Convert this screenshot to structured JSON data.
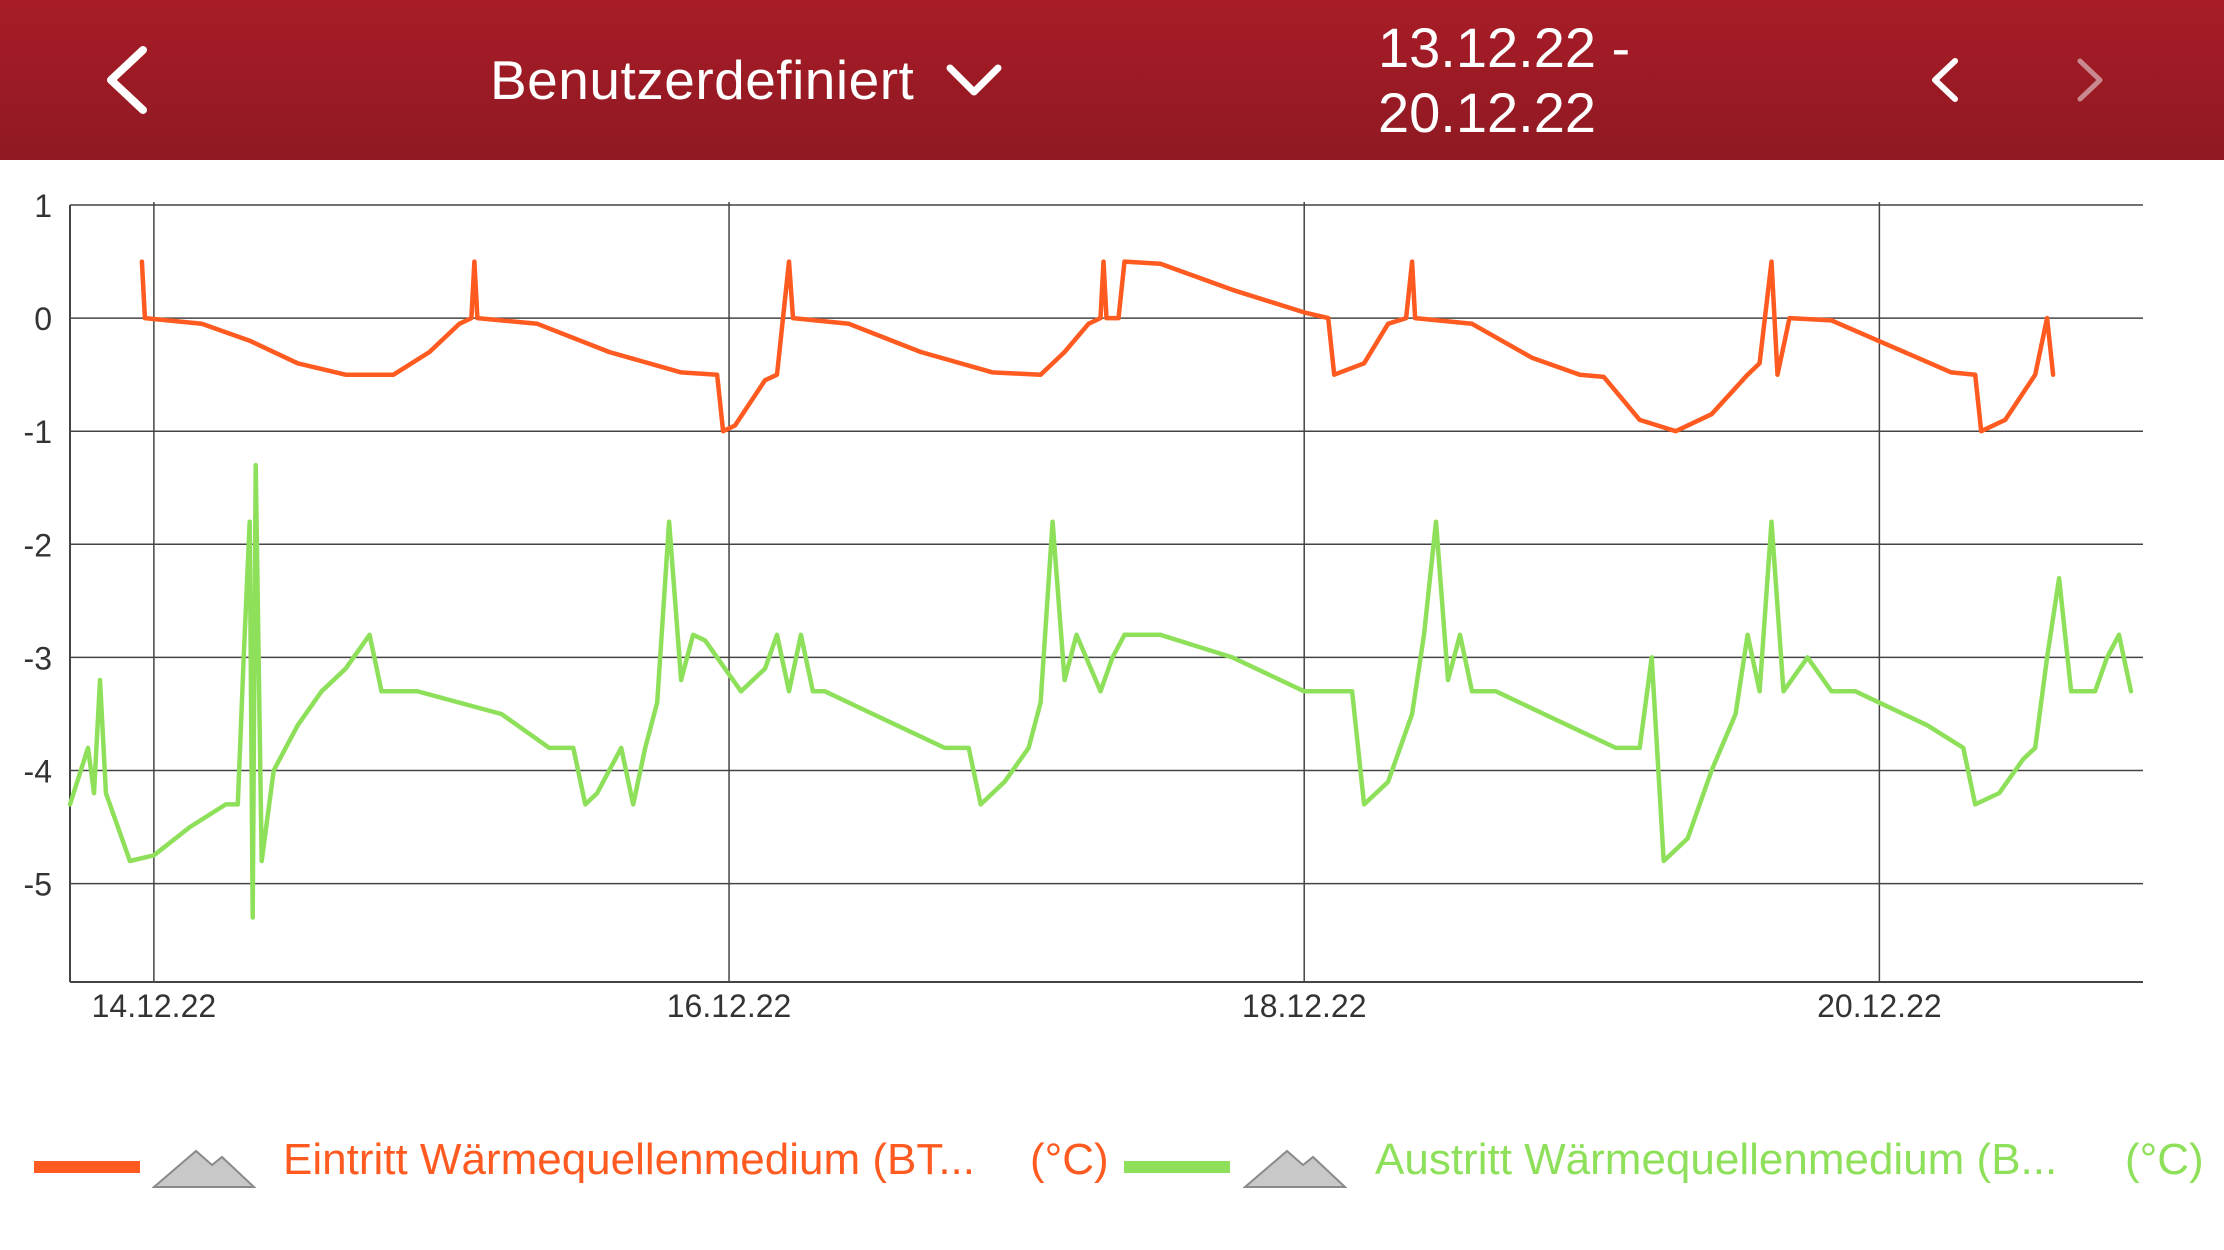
{
  "header": {
    "period_label": "Benutzerdefiniert",
    "date_range": "13.12.22 - 20.12.22"
  },
  "colors": {
    "header_bg": "#a01b25",
    "series_inlet": "#ff5a1f",
    "series_outlet": "#8ee05a",
    "grid": "#444444",
    "toggle_icon": "#c8c8c8"
  },
  "icons": {
    "back": "chevron-left-icon",
    "dropdown": "chevron-down-icon",
    "prev": "chevron-left-icon",
    "next": "chevron-right-icon",
    "toggle": "mountain-icon"
  },
  "legend": [
    {
      "label": "Eintritt Wärmequellenmedium (BT...",
      "unit": "(°C)"
    },
    {
      "label": "Austritt Wärmequellenmedium (B...",
      "unit": "(°C)"
    }
  ],
  "chart_data": {
    "type": "line",
    "x_type": "date",
    "xlim": [
      "13.12.22 17:00",
      "20.12.22 22:00"
    ],
    "ylim": [
      -5.87,
      1
    ],
    "y_ticks": [
      "1",
      "0",
      "-1",
      "-2",
      "-3",
      "-4",
      "-5"
    ],
    "x_ticks": [
      "14.12.22",
      "16.12.22",
      "18.12.22",
      "20.12.22"
    ],
    "grid": true,
    "legend_position": "bottom",
    "series": [
      {
        "name": "Eintritt Wärmequellenmedium (BT...",
        "color": "#ff5a1f",
        "points": [
          [
            "13.12.22 23:00",
            0.5
          ],
          [
            "13.12.22 23:15",
            0.0
          ],
          [
            "14.12.22 04:00",
            -0.05
          ],
          [
            "14.12.22 08:00",
            -0.2
          ],
          [
            "14.12.22 12:00",
            -0.4
          ],
          [
            "14.12.22 16:00",
            -0.5
          ],
          [
            "14.12.22 20:00",
            -0.5
          ],
          [
            "14.12.22 23:00",
            -0.3
          ],
          [
            "15.12.22 01:30",
            -0.05
          ],
          [
            "15.12.22 02:30",
            0.0
          ],
          [
            "15.12.22 02:45",
            0.5
          ],
          [
            "15.12.22 03:00",
            0.0
          ],
          [
            "15.12.22 08:00",
            -0.05
          ],
          [
            "15.12.22 14:00",
            -0.3
          ],
          [
            "15.12.22 20:00",
            -0.48
          ],
          [
            "15.12.22 23:00",
            -0.5
          ],
          [
            "15.12.22 23:30",
            -1.0
          ],
          [
            "16.12.22 00:30",
            -0.95
          ],
          [
            "16.12.22 03:00",
            -0.55
          ],
          [
            "16.12.22 04:00",
            -0.5
          ],
          [
            "16.12.22 04:30",
            0.0
          ],
          [
            "16.12.22 05:00",
            0.5
          ],
          [
            "16.12.22 05:20",
            0.0
          ],
          [
            "16.12.22 10:00",
            -0.05
          ],
          [
            "16.12.22 16:00",
            -0.3
          ],
          [
            "16.12.22 22:00",
            -0.48
          ],
          [
            "17.12.22 02:00",
            -0.5
          ],
          [
            "17.12.22 04:00",
            -0.3
          ],
          [
            "17.12.22 06:00",
            -0.05
          ],
          [
            "17.12.22 07:00",
            0.0
          ],
          [
            "17.12.22 07:15",
            0.5
          ],
          [
            "17.12.22 07:30",
            0.0
          ],
          [
            "17.12.22 08:30",
            0.0
          ],
          [
            "17.12.22 09:00",
            0.5
          ],
          [
            "17.12.22 12:00",
            0.48
          ],
          [
            "17.12.22 18:00",
            0.25
          ],
          [
            "18.12.22 00:00",
            0.05
          ],
          [
            "18.12.22 02:00",
            0.0
          ],
          [
            "18.12.22 02:30",
            -0.5
          ],
          [
            "18.12.22 05:00",
            -0.4
          ],
          [
            "18.12.22 07:00",
            -0.05
          ],
          [
            "18.12.22 08:30",
            0.0
          ],
          [
            "18.12.22 09:00",
            0.5
          ],
          [
            "18.12.22 09:15",
            0.0
          ],
          [
            "18.12.22 14:00",
            -0.05
          ],
          [
            "18.12.22 19:00",
            -0.35
          ],
          [
            "18.12.22 23:00",
            -0.5
          ],
          [
            "19.12.22 01:00",
            -0.52
          ],
          [
            "19.12.22 04:00",
            -0.9
          ],
          [
            "19.12.22 07:00",
            -1.0
          ],
          [
            "19.12.22 10:00",
            -0.85
          ],
          [
            "19.12.22 13:00",
            -0.5
          ],
          [
            "19.12.22 14:00",
            -0.4
          ],
          [
            "19.12.22 15:00",
            0.5
          ],
          [
            "19.12.22 15:30",
            -0.5
          ],
          [
            "19.12.22 16:30",
            0.0
          ],
          [
            "19.12.22 20:00",
            -0.02
          ],
          [
            "20.12.22 01:00",
            -0.25
          ],
          [
            "20.12.22 06:00",
            -0.48
          ],
          [
            "20.12.22 08:00",
            -0.5
          ],
          [
            "20.12.22 08:30",
            -1.0
          ],
          [
            "20.12.22 10:30",
            -0.9
          ],
          [
            "20.12.22 13:00",
            -0.5
          ],
          [
            "20.12.22 14:00",
            0.0
          ],
          [
            "20.12.22 14:30",
            -0.5
          ]
        ]
      },
      {
        "name": "Austritt Wärmequellenmedium (B...",
        "color": "#8ee05a",
        "points": [
          [
            "13.12.22 17:00",
            -4.3
          ],
          [
            "13.12.22 18:30",
            -3.8
          ],
          [
            "13.12.22 19:00",
            -4.2
          ],
          [
            "13.12.22 19:30",
            -3.2
          ],
          [
            "13.12.22 20:00",
            -4.2
          ],
          [
            "13.12.22 22:00",
            -4.8
          ],
          [
            "14.12.22 00:00",
            -4.75
          ],
          [
            "14.12.22 03:00",
            -4.5
          ],
          [
            "14.12.22 06:00",
            -4.3
          ],
          [
            "14.12.22 07:00",
            -4.3
          ],
          [
            "14.12.22 07:30",
            -3.0
          ],
          [
            "14.12.22 08:00",
            -1.8
          ],
          [
            "14.12.22 08:15",
            -5.3
          ],
          [
            "14.12.22 08:30",
            -1.3
          ],
          [
            "14.12.22 09:00",
            -4.8
          ],
          [
            "14.12.22 10:00",
            -4.0
          ],
          [
            "14.12.22 12:00",
            -3.6
          ],
          [
            "14.12.22 14:00",
            -3.3
          ],
          [
            "14.12.22 16:00",
            -3.1
          ],
          [
            "14.12.22 18:00",
            -2.8
          ],
          [
            "14.12.22 19:00",
            -3.3
          ],
          [
            "14.12.22 22:00",
            -3.3
          ],
          [
            "15.12.22 05:00",
            -3.5
          ],
          [
            "15.12.22 09:00",
            -3.8
          ],
          [
            "15.12.22 11:00",
            -3.8
          ],
          [
            "15.12.22 12:00",
            -4.3
          ],
          [
            "15.12.22 13:00",
            -4.2
          ],
          [
            "15.12.22 15:00",
            -3.8
          ],
          [
            "15.12.22 16:00",
            -4.3
          ],
          [
            "15.12.22 17:00",
            -3.8
          ],
          [
            "15.12.22 18:00",
            -3.4
          ],
          [
            "15.12.22 19:00",
            -1.8
          ],
          [
            "15.12.22 20:00",
            -3.2
          ],
          [
            "15.12.22 21:00",
            -2.8
          ],
          [
            "15.12.22 22:00",
            -2.85
          ],
          [
            "16.12.22 01:00",
            -3.3
          ],
          [
            "16.12.22 03:00",
            -3.1
          ],
          [
            "16.12.22 04:00",
            -2.8
          ],
          [
            "16.12.22 05:00",
            -3.3
          ],
          [
            "16.12.22 06:00",
            -2.8
          ],
          [
            "16.12.22 07:00",
            -3.3
          ],
          [
            "16.12.22 08:00",
            -3.3
          ],
          [
            "16.12.22 12:00",
            -3.5
          ],
          [
            "16.12.22 18:00",
            -3.8
          ],
          [
            "16.12.22 20:00",
            -3.8
          ],
          [
            "16.12.22 21:00",
            -4.3
          ],
          [
            "16.12.22 23:00",
            -4.1
          ],
          [
            "17.12.22 01:00",
            -3.8
          ],
          [
            "17.12.22 02:00",
            -3.4
          ],
          [
            "17.12.22 03:00",
            -1.8
          ],
          [
            "17.12.22 04:00",
            -3.2
          ],
          [
            "17.12.22 05:00",
            -2.8
          ],
          [
            "17.12.22 07:00",
            -3.3
          ],
          [
            "17.12.22 08:00",
            -3.0
          ],
          [
            "17.12.22 09:00",
            -2.8
          ],
          [
            "17.12.22 12:00",
            -2.8
          ],
          [
            "17.12.22 18:00",
            -3.0
          ],
          [
            "18.12.22 00:00",
            -3.3
          ],
          [
            "18.12.22 04:00",
            -3.3
          ],
          [
            "18.12.22 05:00",
            -4.3
          ],
          [
            "18.12.22 07:00",
            -4.1
          ],
          [
            "18.12.22 09:00",
            -3.5
          ],
          [
            "18.12.22 10:00",
            -2.8
          ],
          [
            "18.12.22 11:00",
            -1.8
          ],
          [
            "18.12.22 12:00",
            -3.2
          ],
          [
            "18.12.22 13:00",
            -2.8
          ],
          [
            "18.12.22 14:00",
            -3.3
          ],
          [
            "18.12.22 16:00",
            -3.3
          ],
          [
            "18.12.22 22:00",
            -3.6
          ],
          [
            "19.12.22 02:00",
            -3.8
          ],
          [
            "19.12.22 04:00",
            -3.8
          ],
          [
            "19.12.22 05:00",
            -3.0
          ],
          [
            "19.12.22 06:00",
            -4.8
          ],
          [
            "19.12.22 08:00",
            -4.6
          ],
          [
            "19.12.22 10:00",
            -4.0
          ],
          [
            "19.12.22 12:00",
            -3.5
          ],
          [
            "19.12.22 13:00",
            -2.8
          ],
          [
            "19.12.22 14:00",
            -3.3
          ],
          [
            "19.12.22 15:00",
            -1.8
          ],
          [
            "19.12.22 16:00",
            -3.3
          ],
          [
            "19.12.22 18:00",
            -3.0
          ],
          [
            "19.12.22 20:00",
            -3.3
          ],
          [
            "19.12.22 22:00",
            -3.3
          ],
          [
            "20.12.22 04:00",
            -3.6
          ],
          [
            "20.12.22 07:00",
            -3.8
          ],
          [
            "20.12.22 08:00",
            -4.3
          ],
          [
            "20.12.22 10:00",
            -4.2
          ],
          [
            "20.12.22 12:00",
            -3.9
          ],
          [
            "20.12.22 13:00",
            -3.8
          ],
          [
            "20.12.22 14:00",
            -3.0
          ],
          [
            "20.12.22 15:00",
            -2.3
          ],
          [
            "20.12.22 16:00",
            -3.3
          ],
          [
            "20.12.22 18:00",
            -3.3
          ],
          [
            "20.12.22 19:00",
            -3.0
          ],
          [
            "20.12.22 20:00",
            -2.8
          ],
          [
            "20.12.22 21:00",
            -3.3
          ]
        ]
      }
    ]
  }
}
